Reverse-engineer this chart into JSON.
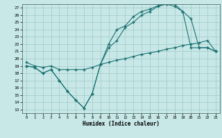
{
  "xlabel": "Humidex (Indice chaleur)",
  "bg_color": "#c8e8e8",
  "grid_color": "#a0c8c8",
  "line_color": "#1a7070",
  "xlim": [
    -0.5,
    23.5
  ],
  "ylim": [
    12.5,
    27.5
  ],
  "yticks": [
    13,
    14,
    15,
    16,
    17,
    18,
    19,
    20,
    21,
    22,
    23,
    24,
    25,
    26,
    27
  ],
  "xticks": [
    0,
    1,
    2,
    3,
    4,
    5,
    6,
    7,
    8,
    9,
    10,
    11,
    12,
    13,
    14,
    15,
    16,
    17,
    18,
    19,
    20,
    21,
    22,
    23
  ],
  "line1_x": [
    0,
    1,
    2,
    3,
    4,
    5,
    6,
    7,
    8,
    9,
    10,
    11,
    12,
    13,
    14,
    15,
    16,
    17,
    18,
    19,
    20,
    21,
    22,
    23
  ],
  "line1_y": [
    19,
    18.8,
    18,
    18.5,
    17,
    15.5,
    14.3,
    13.2,
    15.2,
    19.2,
    21.5,
    22.5,
    24.3,
    25.0,
    26.0,
    26.5,
    27.2,
    27.5,
    27.2,
    26.5,
    25.5,
    21.5,
    21.5,
    21.0
  ],
  "line2_x": [
    0,
    1,
    2,
    3,
    4,
    5,
    6,
    7,
    8,
    9,
    10,
    11,
    12,
    13,
    14,
    15,
    16,
    17,
    18,
    19,
    20,
    21,
    22,
    23
  ],
  "line2_y": [
    19,
    18.8,
    18,
    18.5,
    17,
    15.5,
    14.3,
    13.2,
    15.2,
    19.2,
    22.0,
    24.0,
    24.5,
    25.8,
    26.5,
    26.8,
    27.3,
    27.5,
    27.5,
    26.5,
    21.5,
    21.5,
    21.5,
    21.0
  ],
  "line3_x": [
    0,
    1,
    2,
    3,
    4,
    5,
    6,
    7,
    8,
    9,
    10,
    11,
    12,
    13,
    14,
    15,
    16,
    17,
    18,
    19,
    20,
    21,
    22,
    23
  ],
  "line3_y": [
    19.5,
    19.0,
    18.8,
    19.0,
    18.5,
    18.5,
    18.5,
    18.5,
    18.8,
    19.2,
    19.5,
    19.8,
    20.0,
    20.3,
    20.6,
    20.8,
    21.0,
    21.3,
    21.5,
    21.8,
    22.0,
    22.2,
    22.5,
    21.0
  ]
}
